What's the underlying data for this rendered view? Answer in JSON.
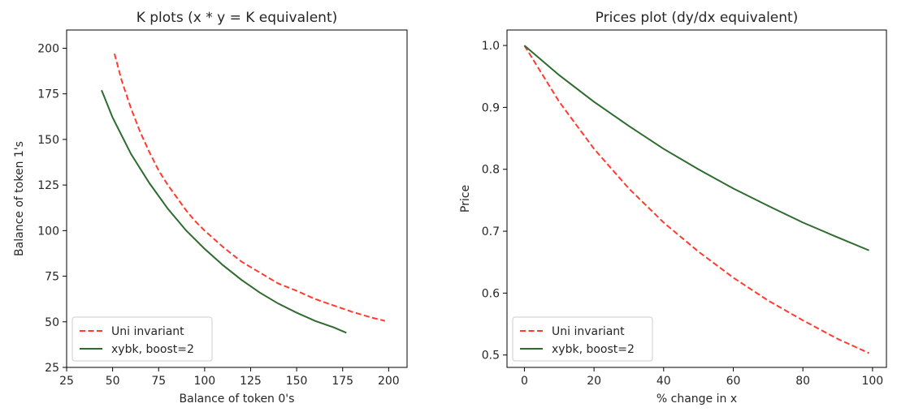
{
  "chart_data": [
    {
      "type": "line",
      "title": "K plots (x * y = K equivalent)",
      "xlabel": "Balance of token 0's",
      "ylabel": "Balance of token 1's",
      "xlim": [
        25,
        210
      ],
      "ylim": [
        25,
        210
      ],
      "xticks": [
        25,
        50,
        75,
        100,
        125,
        150,
        175,
        200
      ],
      "yticks": [
        25,
        50,
        75,
        100,
        125,
        150,
        175,
        200
      ],
      "xtick_labels": [
        "25",
        "50",
        "75",
        "100",
        "125",
        "150",
        "175",
        "200"
      ],
      "ytick_labels": [
        "25",
        "50",
        "75",
        "100",
        "125",
        "150",
        "175",
        "200"
      ],
      "legend_position": "lower-left",
      "series": [
        {
          "name": "Uni invariant",
          "color": "#ff3b2f",
          "style": "dashed",
          "x": [
            51,
            55,
            60,
            65,
            70,
            75,
            80,
            85,
            90,
            95,
            100,
            110,
            120,
            130,
            140,
            150,
            160,
            170,
            180,
            190,
            198
          ],
          "y": [
            197,
            182,
            167,
            154,
            143,
            133,
            125,
            118,
            111,
            105,
            100,
            91,
            83,
            77,
            71,
            67,
            62.5,
            59,
            55.5,
            52.5,
            50.5
          ]
        },
        {
          "name": "xybk, boost=2",
          "color": "#2e6b2e",
          "style": "solid",
          "x": [
            44,
            50,
            60,
            70,
            80,
            90,
            100,
            110,
            120,
            130,
            140,
            150,
            160,
            170,
            177
          ],
          "y": [
            177,
            162,
            142,
            126,
            112,
            100,
            90,
            81,
            73,
            66,
            60,
            55,
            50.5,
            47,
            44
          ]
        }
      ]
    },
    {
      "type": "line",
      "title": "Prices plot (dy/dx equivalent)",
      "xlabel": "% change in x",
      "ylabel": "Price",
      "xlim": [
        -5,
        104
      ],
      "ylim": [
        0.48,
        1.025
      ],
      "xticks": [
        0,
        20,
        40,
        60,
        80,
        100
      ],
      "yticks": [
        0.5,
        0.6,
        0.7,
        0.8,
        0.9,
        1.0
      ],
      "xtick_labels": [
        "0",
        "20",
        "40",
        "60",
        "80",
        "100"
      ],
      "ytick_labels": [
        "0.5",
        "0.6",
        "0.7",
        "0.8",
        "0.9",
        "1.0"
      ],
      "legend_position": "lower-left",
      "series": [
        {
          "name": "Uni invariant",
          "color": "#ff3b2f",
          "style": "dashed",
          "x": [
            0,
            10,
            20,
            30,
            40,
            50,
            60,
            70,
            80,
            90,
            99
          ],
          "y": [
            1.0,
            0.909,
            0.833,
            0.769,
            0.714,
            0.667,
            0.625,
            0.588,
            0.556,
            0.526,
            0.503
          ]
        },
        {
          "name": "xybk, boost=2",
          "color": "#2e6b2e",
          "style": "solid",
          "x": [
            0,
            10,
            20,
            30,
            40,
            50,
            60,
            70,
            80,
            90,
            99
          ],
          "y": [
            1.0,
            0.952,
            0.909,
            0.87,
            0.833,
            0.8,
            0.769,
            0.741,
            0.714,
            0.69,
            0.669
          ]
        }
      ]
    }
  ]
}
